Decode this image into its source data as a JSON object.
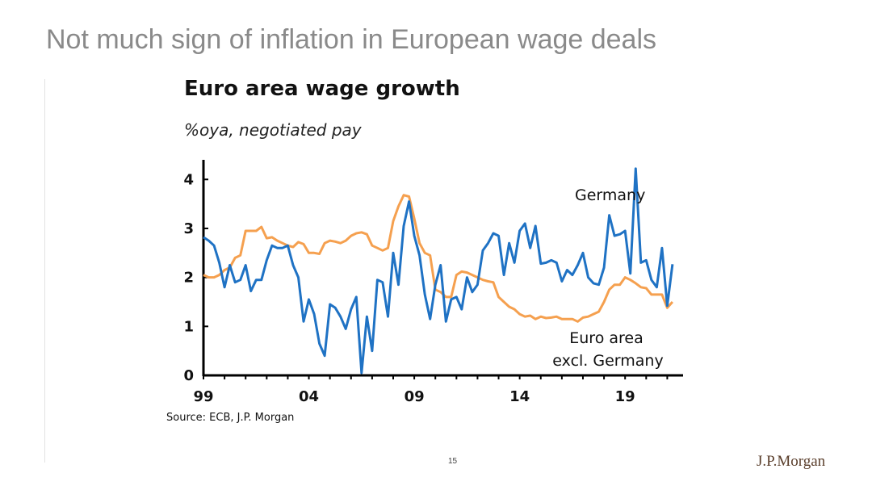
{
  "slide": {
    "title": "Not much sign of inflation in European wage deals",
    "page_number": "15",
    "logo": "J.P.Morgan"
  },
  "colors": {
    "germany": "#1f72c4",
    "euro_ex_germany": "#f5a04f",
    "axis": "#000000"
  },
  "chart_data": {
    "type": "line",
    "title": "Euro area wage growth",
    "subtitle": "%oya, negotiated pay",
    "source": "Source: ECB, J.P. Morgan",
    "xlim": [
      1999,
      2021.75
    ],
    "ylim": [
      0,
      4.4
    ],
    "x_ticks": [
      {
        "value": 1999,
        "label": "99"
      },
      {
        "value": 2004,
        "label": "04"
      },
      {
        "value": 2009,
        "label": "09"
      },
      {
        "value": 2014,
        "label": "14"
      },
      {
        "value": 2019,
        "label": "19"
      }
    ],
    "y_ticks": [
      {
        "value": 0,
        "label": "0"
      },
      {
        "value": 1,
        "label": "1"
      },
      {
        "value": 2,
        "label": "2"
      },
      {
        "value": 3,
        "label": "3"
      },
      {
        "value": 4,
        "label": "4"
      }
    ],
    "series": [
      {
        "name": "Germany",
        "key": "germany",
        "label_lines": [
          "Germany"
        ],
        "points": [
          [
            1999.0,
            2.82
          ],
          [
            1999.25,
            2.75
          ],
          [
            1999.5,
            2.65
          ],
          [
            1999.75,
            2.3
          ],
          [
            2000.0,
            1.8
          ],
          [
            2000.25,
            2.25
          ],
          [
            2000.5,
            1.9
          ],
          [
            2000.75,
            1.95
          ],
          [
            2001.0,
            2.25
          ],
          [
            2001.25,
            1.72
          ],
          [
            2001.5,
            1.95
          ],
          [
            2001.75,
            1.95
          ],
          [
            2002.0,
            2.35
          ],
          [
            2002.25,
            2.65
          ],
          [
            2002.5,
            2.6
          ],
          [
            2002.75,
            2.6
          ],
          [
            2003.0,
            2.65
          ],
          [
            2003.25,
            2.25
          ],
          [
            2003.5,
            2.0
          ],
          [
            2003.75,
            1.1
          ],
          [
            2004.0,
            1.55
          ],
          [
            2004.25,
            1.25
          ],
          [
            2004.5,
            0.65
          ],
          [
            2004.75,
            0.4
          ],
          [
            2005.0,
            1.45
          ],
          [
            2005.25,
            1.38
          ],
          [
            2005.5,
            1.2
          ],
          [
            2005.75,
            0.95
          ],
          [
            2006.0,
            1.35
          ],
          [
            2006.25,
            1.6
          ],
          [
            2006.5,
            0.05
          ],
          [
            2006.75,
            1.2
          ],
          [
            2007.0,
            0.5
          ],
          [
            2007.25,
            1.95
          ],
          [
            2007.5,
            1.9
          ],
          [
            2007.75,
            1.2
          ],
          [
            2008.0,
            2.5
          ],
          [
            2008.25,
            1.85
          ],
          [
            2008.5,
            3.05
          ],
          [
            2008.75,
            3.55
          ],
          [
            2009.0,
            2.85
          ],
          [
            2009.25,
            2.45
          ],
          [
            2009.5,
            1.65
          ],
          [
            2009.75,
            1.15
          ],
          [
            2010.0,
            1.85
          ],
          [
            2010.25,
            2.25
          ],
          [
            2010.5,
            1.1
          ],
          [
            2010.75,
            1.55
          ],
          [
            2011.0,
            1.6
          ],
          [
            2011.25,
            1.35
          ],
          [
            2011.5,
            2.0
          ],
          [
            2011.75,
            1.7
          ],
          [
            2012.0,
            1.85
          ],
          [
            2012.25,
            2.55
          ],
          [
            2012.5,
            2.7
          ],
          [
            2012.75,
            2.9
          ],
          [
            2013.0,
            2.85
          ],
          [
            2013.25,
            2.05
          ],
          [
            2013.5,
            2.7
          ],
          [
            2013.75,
            2.3
          ],
          [
            2014.0,
            2.95
          ],
          [
            2014.25,
            3.1
          ],
          [
            2014.5,
            2.6
          ],
          [
            2014.75,
            3.05
          ],
          [
            2015.0,
            2.28
          ],
          [
            2015.25,
            2.3
          ],
          [
            2015.5,
            2.35
          ],
          [
            2015.75,
            2.3
          ],
          [
            2016.0,
            1.92
          ],
          [
            2016.25,
            2.15
          ],
          [
            2016.5,
            2.05
          ],
          [
            2016.75,
            2.25
          ],
          [
            2017.0,
            2.5
          ],
          [
            2017.25,
            2.0
          ],
          [
            2017.5,
            1.88
          ],
          [
            2017.75,
            1.85
          ],
          [
            2018.0,
            2.2
          ],
          [
            2018.25,
            3.27
          ],
          [
            2018.5,
            2.85
          ],
          [
            2018.75,
            2.88
          ],
          [
            2019.0,
            2.95
          ],
          [
            2019.25,
            2.08
          ],
          [
            2019.5,
            4.22
          ],
          [
            2019.75,
            2.3
          ],
          [
            2020.0,
            2.35
          ],
          [
            2020.25,
            1.95
          ],
          [
            2020.5,
            1.8
          ],
          [
            2020.75,
            2.6
          ],
          [
            2021.0,
            1.42
          ],
          [
            2021.25,
            2.27
          ]
        ]
      },
      {
        "name": "Euro area excl. Germany",
        "key": "euro_ex_germany",
        "label_lines": [
          "Euro area",
          "excl. Germany"
        ],
        "points": [
          [
            1999.0,
            2.05
          ],
          [
            1999.25,
            2.0
          ],
          [
            1999.5,
            2.0
          ],
          [
            1999.75,
            2.05
          ],
          [
            2000.0,
            2.15
          ],
          [
            2000.25,
            2.2
          ],
          [
            2000.5,
            2.4
          ],
          [
            2000.75,
            2.45
          ],
          [
            2001.0,
            2.95
          ],
          [
            2001.25,
            2.95
          ],
          [
            2001.5,
            2.95
          ],
          [
            2001.75,
            3.03
          ],
          [
            2002.0,
            2.8
          ],
          [
            2002.25,
            2.82
          ],
          [
            2002.5,
            2.75
          ],
          [
            2002.75,
            2.7
          ],
          [
            2003.0,
            2.65
          ],
          [
            2003.25,
            2.62
          ],
          [
            2003.5,
            2.72
          ],
          [
            2003.75,
            2.68
          ],
          [
            2004.0,
            2.5
          ],
          [
            2004.25,
            2.5
          ],
          [
            2004.5,
            2.48
          ],
          [
            2004.75,
            2.7
          ],
          [
            2005.0,
            2.75
          ],
          [
            2005.25,
            2.73
          ],
          [
            2005.5,
            2.7
          ],
          [
            2005.75,
            2.75
          ],
          [
            2006.0,
            2.85
          ],
          [
            2006.25,
            2.9
          ],
          [
            2006.5,
            2.92
          ],
          [
            2006.75,
            2.88
          ],
          [
            2007.0,
            2.65
          ],
          [
            2007.25,
            2.6
          ],
          [
            2007.5,
            2.55
          ],
          [
            2007.75,
            2.6
          ],
          [
            2008.0,
            3.15
          ],
          [
            2008.25,
            3.45
          ],
          [
            2008.5,
            3.68
          ],
          [
            2008.75,
            3.65
          ],
          [
            2009.0,
            3.2
          ],
          [
            2009.25,
            2.7
          ],
          [
            2009.5,
            2.5
          ],
          [
            2009.75,
            2.45
          ],
          [
            2010.0,
            1.75
          ],
          [
            2010.25,
            1.7
          ],
          [
            2010.5,
            1.6
          ],
          [
            2010.75,
            1.6
          ],
          [
            2011.0,
            2.05
          ],
          [
            2011.25,
            2.12
          ],
          [
            2011.5,
            2.1
          ],
          [
            2011.75,
            2.05
          ],
          [
            2012.0,
            2.0
          ],
          [
            2012.25,
            1.95
          ],
          [
            2012.5,
            1.92
          ],
          [
            2012.75,
            1.9
          ],
          [
            2013.0,
            1.6
          ],
          [
            2013.25,
            1.5
          ],
          [
            2013.5,
            1.4
          ],
          [
            2013.75,
            1.35
          ],
          [
            2014.0,
            1.25
          ],
          [
            2014.25,
            1.2
          ],
          [
            2014.5,
            1.22
          ],
          [
            2014.75,
            1.15
          ],
          [
            2015.0,
            1.2
          ],
          [
            2015.25,
            1.17
          ],
          [
            2015.5,
            1.18
          ],
          [
            2015.75,
            1.2
          ],
          [
            2016.0,
            1.15
          ],
          [
            2016.25,
            1.15
          ],
          [
            2016.5,
            1.15
          ],
          [
            2016.75,
            1.1
          ],
          [
            2017.0,
            1.18
          ],
          [
            2017.25,
            1.2
          ],
          [
            2017.5,
            1.25
          ],
          [
            2017.75,
            1.3
          ],
          [
            2018.0,
            1.5
          ],
          [
            2018.25,
            1.75
          ],
          [
            2018.5,
            1.85
          ],
          [
            2018.75,
            1.85
          ],
          [
            2019.0,
            2.0
          ],
          [
            2019.25,
            1.95
          ],
          [
            2019.5,
            1.88
          ],
          [
            2019.75,
            1.8
          ],
          [
            2020.0,
            1.78
          ],
          [
            2020.25,
            1.65
          ],
          [
            2020.5,
            1.65
          ],
          [
            2020.75,
            1.65
          ],
          [
            2021.0,
            1.38
          ],
          [
            2021.25,
            1.5
          ]
        ]
      }
    ]
  }
}
